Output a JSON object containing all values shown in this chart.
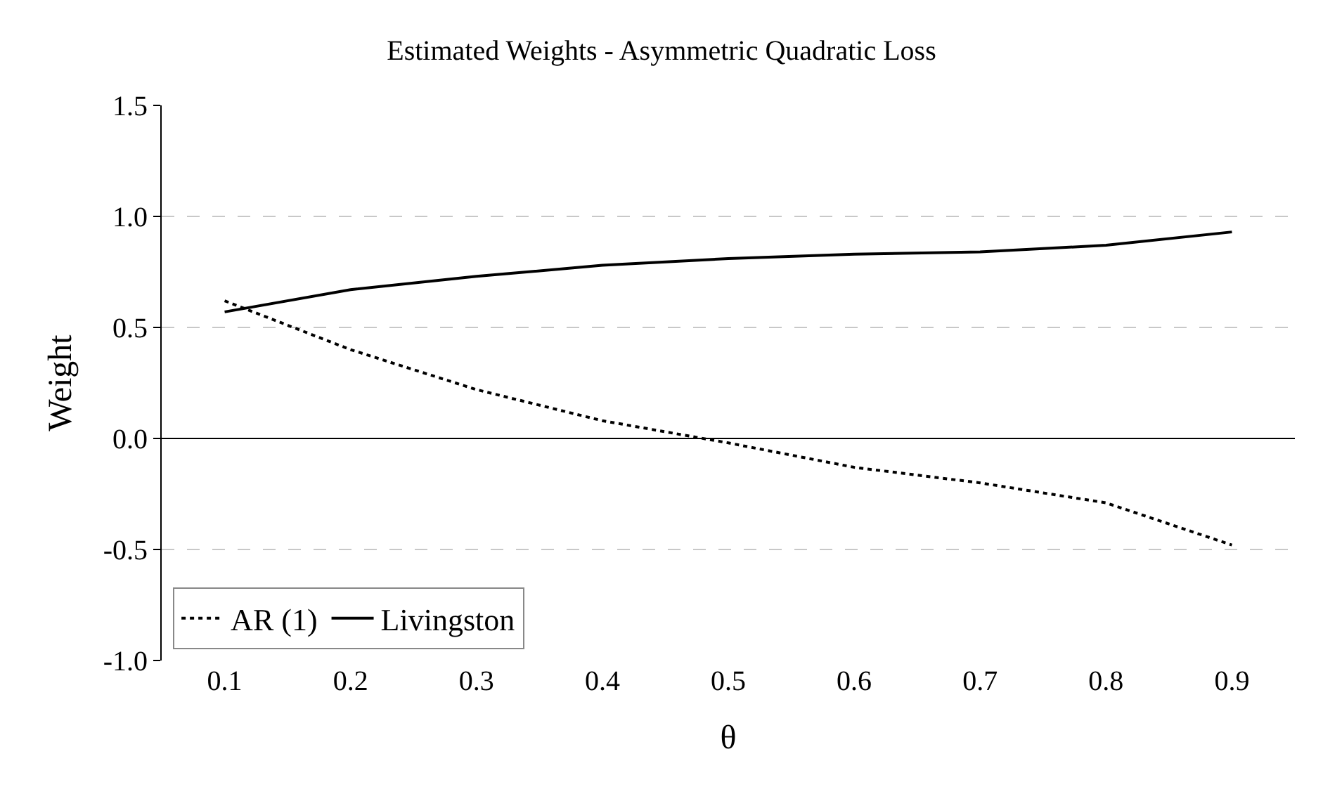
{
  "chart_data": {
    "type": "line",
    "title": "Estimated Weights - Asymmetric Quadratic Loss",
    "xlabel": "θ",
    "ylabel": "Weight",
    "categories": [
      "0.1",
      "0.2",
      "0.3",
      "0.4",
      "0.5",
      "0.6",
      "0.7",
      "0.8",
      "0.9"
    ],
    "series": [
      {
        "name": "AR (1)",
        "color": "#000000",
        "line_style": "dotted",
        "values": [
          0.62,
          0.4,
          0.22,
          0.08,
          -0.02,
          -0.13,
          -0.2,
          -0.29,
          -0.48
        ]
      },
      {
        "name": "Livingston",
        "color": "#000000",
        "line_style": "solid",
        "values": [
          0.57,
          0.67,
          0.73,
          0.78,
          0.81,
          0.83,
          0.84,
          0.87,
          0.93
        ]
      }
    ],
    "ylim": [
      -1.0,
      1.5
    ],
    "yticks": [
      {
        "value": -1.0,
        "label": "-1.0"
      },
      {
        "value": -0.5,
        "label": "-0.5"
      },
      {
        "value": 0,
        "label": "0.0"
      },
      {
        "value": 0.5,
        "label": "0.5"
      },
      {
        "value": 1.0,
        "label": "1.0"
      },
      {
        "value": 1.5,
        "label": "1.5"
      }
    ],
    "grid": "y",
    "legend": "bottom left",
    "marker": "none"
  }
}
